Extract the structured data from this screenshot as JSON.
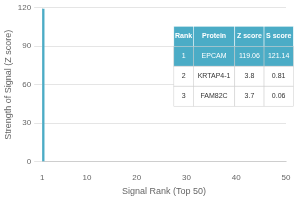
{
  "chart_data": {
    "type": "bar",
    "x": [
      1
    ],
    "values": [
      119
    ],
    "color": "#4BACC6",
    "xlabel": "Signal Rank (Top 50)",
    "ylabel": "Strength of Signal (Z score)",
    "xlim": [
      1,
      50
    ],
    "xticks": [
      1,
      10,
      20,
      30,
      40,
      50
    ],
    "ylim": [
      0,
      120
    ],
    "yticks": [
      0,
      30,
      60,
      90,
      120
    ],
    "grid": "y",
    "table": [
      [
        "Rank",
        "Protein",
        "Z score",
        "S score"
      ],
      [
        "1",
        "EPCAM",
        "119.06",
        "121.14"
      ],
      [
        "2",
        "KRTAP4-1",
        "3.8",
        "0.81"
      ],
      [
        "3",
        "FAM82C",
        "3.7",
        "0.06"
      ]
    ]
  }
}
